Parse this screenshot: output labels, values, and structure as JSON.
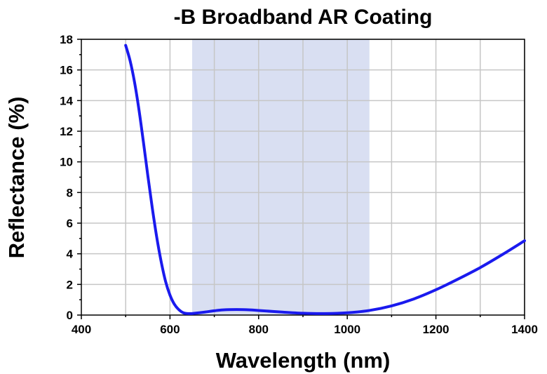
{
  "chart_data": {
    "type": "line",
    "title": "-B Broadband AR Coating",
    "xlabel": "Wavelength (nm)",
    "ylabel": "Reflectance (%)",
    "xlim": [
      400,
      1400
    ],
    "ylim": [
      0,
      18
    ],
    "xticks": [
      400,
      600,
      800,
      1000,
      1200,
      1400
    ],
    "yticks": [
      0,
      2,
      4,
      6,
      8,
      10,
      12,
      14,
      16,
      18
    ],
    "x_gridlines": [
      500,
      600,
      700,
      800,
      900,
      1000,
      1100,
      1200,
      1300,
      1400
    ],
    "y_gridlines": [
      2,
      4,
      6,
      8,
      10,
      12,
      14,
      16,
      18
    ],
    "grid": true,
    "shaded_region": {
      "x_start": 650,
      "x_end": 1050,
      "color": "#d9dff2"
    },
    "series": [
      {
        "name": "Reflectance",
        "color": "#1a1aee",
        "x": [
          500,
          510,
          520,
          530,
          540,
          550,
          560,
          570,
          580,
          590,
          600,
          610,
          620,
          630,
          640,
          650,
          660,
          680,
          700,
          720,
          750,
          780,
          800,
          850,
          900,
          950,
          1000,
          1050,
          1100,
          1150,
          1200,
          1250,
          1300,
          1350,
          1400
        ],
        "y": [
          17.6,
          16.6,
          15.2,
          13.4,
          11.3,
          9.1,
          7.0,
          5.1,
          3.5,
          2.2,
          1.3,
          0.7,
          0.35,
          0.15,
          0.1,
          0.1,
          0.13,
          0.2,
          0.28,
          0.34,
          0.36,
          0.34,
          0.3,
          0.2,
          0.12,
          0.1,
          0.15,
          0.3,
          0.6,
          1.05,
          1.65,
          2.35,
          3.1,
          3.95,
          4.85
        ]
      }
    ]
  }
}
